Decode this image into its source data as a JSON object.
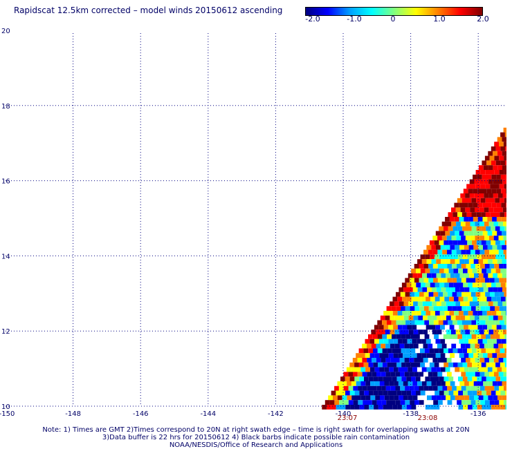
{
  "title": "Rapidscat 12.5km corrected – model winds 20150612 ascending",
  "colorbar": {
    "ticks": [
      "-2.0",
      "-1.0",
      "0",
      "1.0",
      "2.0"
    ],
    "stops": [
      "#000080",
      "#0000ff",
      "#00a0ff",
      "#00ffff",
      "#80ff80",
      "#ffff00",
      "#ff8000",
      "#ff0000",
      "#800000"
    ]
  },
  "map": {
    "lon_ticks": [
      "-150",
      "-148",
      "-146",
      "-144",
      "-142",
      "-140",
      "-138",
      "-136"
    ],
    "lat_ticks": [
      "10",
      "12",
      "14",
      "16",
      "18",
      "20"
    ],
    "lon_range": [
      -150,
      -135
    ],
    "lat_range": [
      10,
      20
    ],
    "grid": "dotted"
  },
  "times": [
    "23:07",
    "23:08"
  ],
  "notes": [
    "Note: 1) Times are GMT 2)Times correspond to 20N at right swath edge – time is right swath for overlapping swaths at 20N",
    "3)Data buffer is 22 hrs for 20150612 4) Black barbs indicate possible rain contamination",
    "NOAA/NESDIS/Office of Research and Applications"
  ]
}
